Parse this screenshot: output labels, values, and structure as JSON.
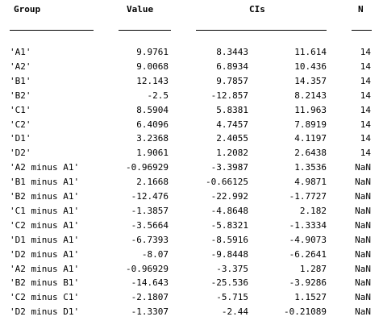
{
  "table": {
    "headers": {
      "group": "Group",
      "value": "Value",
      "cis": "CIs",
      "n": "N"
    },
    "rows": [
      {
        "group": "'A1'",
        "value": "9.9761",
        "ci_low": "8.3443",
        "ci_high": "11.614",
        "n": "14"
      },
      {
        "group": "'A2'",
        "value": "9.0068",
        "ci_low": "6.8934",
        "ci_high": "10.436",
        "n": "14"
      },
      {
        "group": "'B1'",
        "value": "12.143",
        "ci_low": "9.7857",
        "ci_high": "14.357",
        "n": "14"
      },
      {
        "group": "'B2'",
        "value": "-2.5",
        "ci_low": "-12.857",
        "ci_high": "8.2143",
        "n": "14"
      },
      {
        "group": "'C1'",
        "value": "8.5904",
        "ci_low": "5.8381",
        "ci_high": "11.963",
        "n": "14"
      },
      {
        "group": "'C2'",
        "value": "6.4096",
        "ci_low": "4.7457",
        "ci_high": "7.8919",
        "n": "14"
      },
      {
        "group": "'D1'",
        "value": "3.2368",
        "ci_low": "2.4055",
        "ci_high": "4.1197",
        "n": "14"
      },
      {
        "group": "'D2'",
        "value": "1.9061",
        "ci_low": "1.2082",
        "ci_high": "2.6438",
        "n": "14"
      },
      {
        "group": "'A2 minus A1'",
        "value": "-0.96929",
        "ci_low": "-3.3987",
        "ci_high": "1.3536",
        "n": "NaN"
      },
      {
        "group": "'B1 minus A1'",
        "value": "2.1668",
        "ci_low": "-0.66125",
        "ci_high": "4.9871",
        "n": "NaN"
      },
      {
        "group": "'B2 minus A1'",
        "value": "-12.476",
        "ci_low": "-22.992",
        "ci_high": "-1.7727",
        "n": "NaN"
      },
      {
        "group": "'C1 minus A1'",
        "value": "-1.3857",
        "ci_low": "-4.8648",
        "ci_high": "2.182",
        "n": "NaN"
      },
      {
        "group": "'C2 minus A1'",
        "value": "-3.5664",
        "ci_low": "-5.8321",
        "ci_high": "-1.3334",
        "n": "NaN"
      },
      {
        "group": "'D1 minus A1'",
        "value": "-6.7393",
        "ci_low": "-8.5916",
        "ci_high": "-4.9073",
        "n": "NaN"
      },
      {
        "group": "'D2 minus A1'",
        "value": "-8.07",
        "ci_low": "-9.8448",
        "ci_high": "-6.2641",
        "n": "NaN"
      },
      {
        "group": "'A2 minus A1'",
        "value": "-0.96929",
        "ci_low": "-3.375",
        "ci_high": "1.287",
        "n": "NaN"
      },
      {
        "group": "'B2 minus B1'",
        "value": "-14.643",
        "ci_low": "-25.536",
        "ci_high": "-3.9286",
        "n": "NaN"
      },
      {
        "group": "'C2 minus C1'",
        "value": "-2.1807",
        "ci_low": "-5.715",
        "ci_high": "1.1527",
        "n": "NaN"
      },
      {
        "group": "'D2 minus D1'",
        "value": "-1.3307",
        "ci_low": "-2.44",
        "ci_high": "-0.21089",
        "n": "NaN"
      }
    ]
  }
}
